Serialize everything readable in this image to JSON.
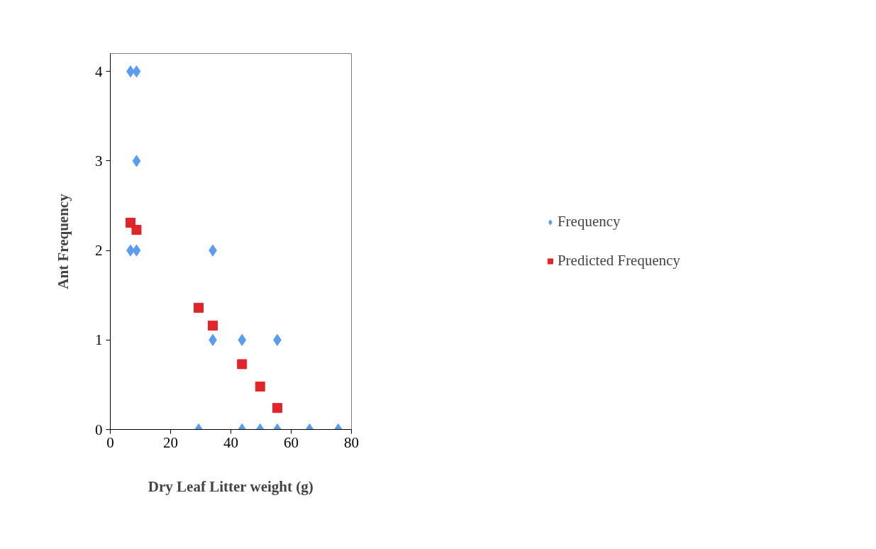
{
  "chart_data": {
    "type": "scatter",
    "xlabel": "Dry Leaf Litter weight (g)",
    "ylabel": "Ant Frequency",
    "xlim": [
      0,
      80
    ],
    "xticks": [
      0,
      20,
      40,
      60,
      80
    ],
    "ylim": [
      0,
      4.2
    ],
    "yticks": [
      0,
      1,
      2,
      3,
      4
    ],
    "grid": false,
    "legend": "right",
    "series": [
      {
        "name": "Frequency",
        "color": "#5b9bf0",
        "marker": "diamond",
        "x": [
          6.7,
          8.7,
          8.7,
          6.7,
          8.7,
          34,
          34,
          43.7,
          55.4,
          29.3,
          43.7,
          49.7,
          55.4,
          66.1,
          75.6
        ],
        "values": [
          4,
          4,
          3,
          2,
          2,
          2,
          1,
          1,
          1,
          0,
          0,
          0,
          0,
          0,
          0
        ]
      },
      {
        "name": "Predicted Frequency",
        "color": "#e0262b",
        "marker": "square",
        "x": [
          6.7,
          8.7,
          29.3,
          34,
          43.7,
          49.7,
          55.4
        ],
        "values": [
          2.31,
          2.23,
          1.36,
          1.16,
          0.73,
          0.48,
          0.24
        ]
      }
    ]
  }
}
